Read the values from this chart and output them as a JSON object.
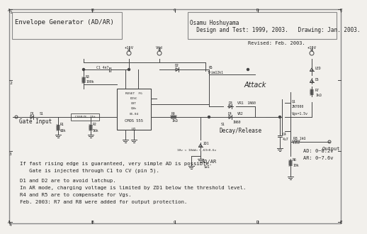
{
  "title": "Envelope Generator (AD/AR)",
  "author_line1": "Osamu Hoshuyama",
  "author_line2": "  Design and Test: 1999, 2003.   Drawing: Jan. 2003.",
  "revised": "Revised: Feb. 2003.",
  "bg_color": "#f2f0ec",
  "border_color": "#888888",
  "line_color": "#444444",
  "text_color": "#222222",
  "notes": [
    "If fast rising edge is guaranteed, very simple AD is possible.",
    "   Gate is injected through C1 to CV (pin 5).",
    "D1 and D2 are to avoid latchup.",
    "In AR mode, charging voltage is limited by ZD1 below the threshold level.",
    "R4 and R5 are to compensate for Vgs.",
    "Feb. 2003: R7 and R8 were added for output protection."
  ]
}
